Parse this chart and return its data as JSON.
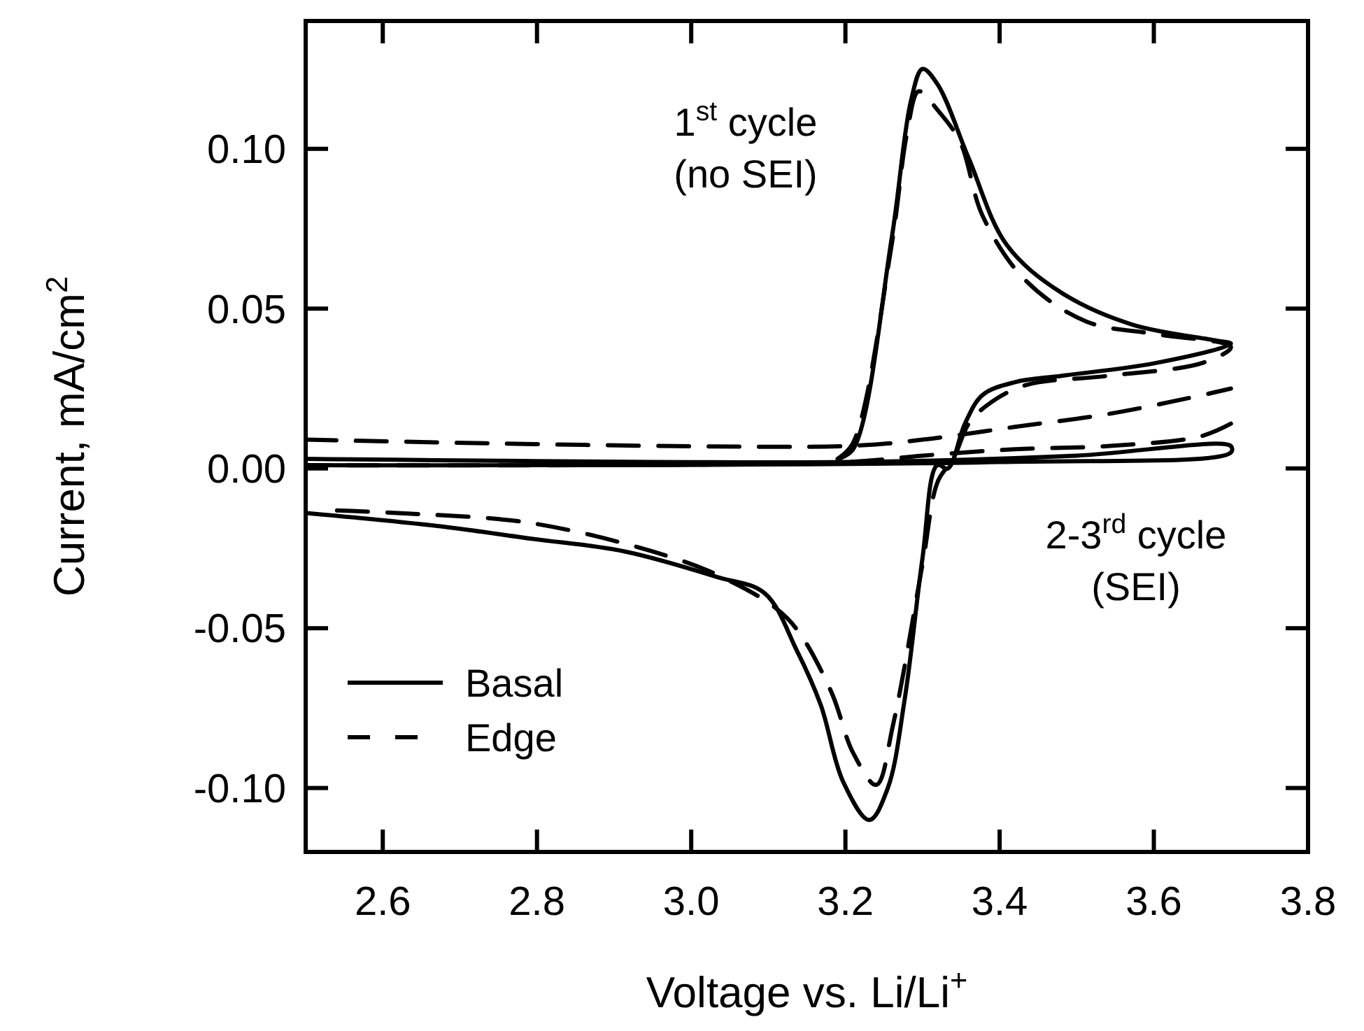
{
  "chart_data": {
    "type": "line",
    "xlabel": "Voltage vs. Li/Li$^{+}$",
    "ylabel": "Current, mA/cm$^{2}$",
    "xlim": [
      2.5,
      3.8
    ],
    "ylim": [
      -0.12,
      0.14
    ],
    "xticks": [
      2.6,
      2.8,
      {
        "value": 3.0,
        "label": "3.0"
      },
      3.2,
      3.4,
      3.6,
      3.8
    ],
    "yticks": [
      {
        "value": -0.1,
        "label": "-0.10"
      },
      {
        "value": -0.05,
        "label": "-0.05"
      },
      {
        "value": 0,
        "label": "0.00"
      },
      {
        "value": 0.05,
        "label": "0.05"
      },
      {
        "value": 0.1,
        "label": "0.10"
      }
    ],
    "legend": "bottom left",
    "grid": false,
    "annotations": [
      "1$^{st}$ cycle\n(no SEI)",
      "2-3$^{rd}$ cycle\n(SEI)"
    ],
    "series": [
      {
        "name": "Basal",
        "color": "#000000",
        "line_style": "solid",
        "x": [
          3.19,
          3.21,
          3.26,
          3.285,
          3.3,
          3.32,
          3.36,
          3.409,
          3.48,
          3.572,
          3.681,
          3.7,
          3.603,
          3.481,
          3.42,
          3.378,
          3.355,
          3.333,
          3.319,
          3.3,
          3.277,
          3.255,
          3.231,
          3.197,
          3.168,
          3.137,
          3.095,
          3.034,
          2.914,
          2.793,
          2.671,
          2.503,
          null,
          2.5,
          3.2,
          3.5,
          3.7,
          3.7,
          3.4,
          2.5
        ],
        "values": [
          0.003,
          0.006,
          0.072,
          0.115,
          0.125,
          0.12,
          0.097,
          0.07,
          0.055,
          0.045,
          0.04,
          0.039,
          0.033,
          0.029,
          0.027,
          0.023,
          0.014,
          0.0,
          0.001,
          -0.028,
          -0.072,
          -0.1,
          -0.11,
          -0.098,
          -0.074,
          -0.057,
          -0.039,
          -0.034,
          -0.026,
          -0.022,
          -0.018,
          -0.014,
          null,
          0.003,
          0.002,
          0.004,
          0.007,
          0.005,
          0.002,
          0.001
        ]
      },
      {
        "name": "Edge",
        "color": "#000000",
        "line_style": "dashed",
        "x": [
          3.19,
          3.21,
          3.26,
          3.28,
          3.295,
          3.32,
          3.349,
          3.378,
          3.433,
          3.512,
          3.603,
          3.7,
          3.663,
          3.542,
          3.433,
          3.385,
          3.36,
          3.34,
          3.32,
          3.3,
          3.262,
          3.24,
          3.21,
          3.18,
          3.125,
          3.04,
          2.95,
          2.79,
          2.624,
          2.52,
          null,
          2.5,
          3.2,
          3.3,
          3.42,
          3.54,
          3.645,
          3.7,
          null,
          3.7,
          3.66,
          3.54,
          3.42,
          3.3,
          3.2,
          2.5
        ],
        "values": [
          0.003,
          0.008,
          0.07,
          0.105,
          0.118,
          0.112,
          0.102,
          0.079,
          0.059,
          0.046,
          0.042,
          0.038,
          0.033,
          0.029,
          0.026,
          0.02,
          0.014,
          0.003,
          -0.004,
          -0.03,
          -0.08,
          -0.099,
          -0.089,
          -0.069,
          -0.047,
          -0.034,
          -0.026,
          -0.017,
          -0.014,
          -0.013,
          null,
          0.009,
          0.007,
          0.009,
          0.013,
          0.017,
          0.022,
          0.025,
          null,
          0.014,
          0.01,
          0.007,
          0.006,
          0.004,
          0.002,
          0.001
        ]
      }
    ]
  }
}
